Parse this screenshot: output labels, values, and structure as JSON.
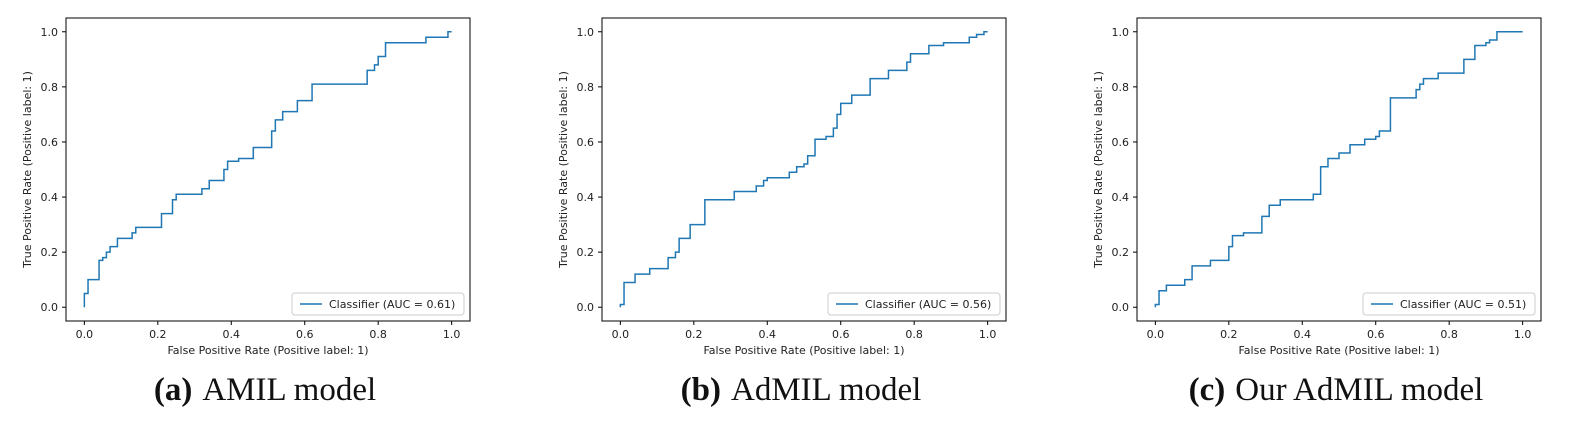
{
  "chart_data": [
    {
      "type": "line",
      "caption_tag": "(a)",
      "caption_text": "AMIL model",
      "xlabel": "False Positive Rate (Positive label: 1)",
      "ylabel": "True Positive Rate (Positive label: 1)",
      "xlim": [
        -0.05,
        1.05
      ],
      "ylim": [
        -0.05,
        1.05
      ],
      "xticks": [
        "0.0",
        "0.2",
        "0.4",
        "0.6",
        "0.8",
        "1.0"
      ],
      "yticks": [
        "0.0",
        "0.2",
        "0.4",
        "0.6",
        "0.8",
        "1.0"
      ],
      "legend_position": "lower-right",
      "series": [
        {
          "name": "Classifier (AUC = 0.61)",
          "color": "#1f77b4",
          "x": [
            0.0,
            0.0,
            0.01,
            0.01,
            0.04,
            0.04,
            0.05,
            0.05,
            0.06,
            0.06,
            0.07,
            0.07,
            0.09,
            0.09,
            0.13,
            0.13,
            0.14,
            0.14,
            0.21,
            0.21,
            0.24,
            0.24,
            0.25,
            0.25,
            0.32,
            0.32,
            0.34,
            0.34,
            0.38,
            0.38,
            0.39,
            0.39,
            0.42,
            0.42,
            0.46,
            0.46,
            0.51,
            0.51,
            0.52,
            0.52,
            0.54,
            0.54,
            0.58,
            0.58,
            0.62,
            0.62,
            0.77,
            0.77,
            0.79,
            0.79,
            0.8,
            0.8,
            0.82,
            0.82,
            0.93,
            0.93,
            0.99,
            0.99,
            1.0
          ],
          "y": [
            0.0,
            0.05,
            0.05,
            0.1,
            0.1,
            0.17,
            0.17,
            0.18,
            0.18,
            0.2,
            0.2,
            0.22,
            0.22,
            0.25,
            0.25,
            0.27,
            0.27,
            0.29,
            0.29,
            0.34,
            0.34,
            0.39,
            0.39,
            0.41,
            0.41,
            0.43,
            0.43,
            0.46,
            0.46,
            0.5,
            0.5,
            0.53,
            0.53,
            0.54,
            0.54,
            0.58,
            0.58,
            0.64,
            0.64,
            0.68,
            0.68,
            0.71,
            0.71,
            0.75,
            0.75,
            0.81,
            0.81,
            0.86,
            0.86,
            0.88,
            0.88,
            0.91,
            0.91,
            0.96,
            0.96,
            0.98,
            0.98,
            1.0,
            1.0
          ]
        }
      ]
    },
    {
      "type": "line",
      "caption_tag": "(b)",
      "caption_text": "AdMIL model",
      "xlabel": "False Positive Rate (Positive label: 1)",
      "ylabel": "True Positive Rate (Positive label: 1)",
      "xlim": [
        -0.05,
        1.05
      ],
      "ylim": [
        -0.05,
        1.05
      ],
      "xticks": [
        "0.0",
        "0.2",
        "0.4",
        "0.6",
        "0.8",
        "1.0"
      ],
      "yticks": [
        "0.0",
        "0.2",
        "0.4",
        "0.6",
        "0.8",
        "1.0"
      ],
      "legend_position": "lower-right",
      "series": [
        {
          "name": "Classifier (AUC = 0.56)",
          "color": "#1f77b4",
          "x": [
            0.0,
            0.0,
            0.01,
            0.01,
            0.04,
            0.04,
            0.08,
            0.08,
            0.13,
            0.13,
            0.15,
            0.15,
            0.16,
            0.16,
            0.19,
            0.19,
            0.23,
            0.23,
            0.31,
            0.31,
            0.37,
            0.37,
            0.39,
            0.39,
            0.4,
            0.4,
            0.46,
            0.46,
            0.48,
            0.48,
            0.5,
            0.5,
            0.51,
            0.51,
            0.53,
            0.53,
            0.56,
            0.56,
            0.58,
            0.58,
            0.59,
            0.59,
            0.6,
            0.6,
            0.63,
            0.63,
            0.68,
            0.68,
            0.73,
            0.73,
            0.78,
            0.78,
            0.79,
            0.79,
            0.84,
            0.84,
            0.88,
            0.88,
            0.95,
            0.95,
            0.97,
            0.97,
            0.99,
            0.99,
            1.0
          ],
          "y": [
            0.0,
            0.01,
            0.01,
            0.09,
            0.09,
            0.12,
            0.12,
            0.14,
            0.14,
            0.18,
            0.18,
            0.2,
            0.2,
            0.25,
            0.25,
            0.3,
            0.3,
            0.39,
            0.39,
            0.42,
            0.42,
            0.44,
            0.44,
            0.46,
            0.46,
            0.47,
            0.47,
            0.49,
            0.49,
            0.51,
            0.51,
            0.52,
            0.52,
            0.55,
            0.55,
            0.61,
            0.61,
            0.62,
            0.62,
            0.65,
            0.65,
            0.7,
            0.7,
            0.74,
            0.74,
            0.77,
            0.77,
            0.83,
            0.83,
            0.86,
            0.86,
            0.89,
            0.89,
            0.92,
            0.92,
            0.95,
            0.95,
            0.96,
            0.96,
            0.98,
            0.98,
            0.99,
            0.99,
            1.0,
            1.0
          ]
        }
      ]
    },
    {
      "type": "line",
      "caption_tag": "(c)",
      "caption_text": "Our AdMIL model",
      "xlabel": "False Positive Rate (Positive label: 1)",
      "ylabel": "True Positive Rate (Positive label: 1)",
      "xlim": [
        -0.05,
        1.05
      ],
      "ylim": [
        -0.05,
        1.05
      ],
      "xticks": [
        "0.0",
        "0.2",
        "0.4",
        "0.6",
        "0.8",
        "1.0"
      ],
      "yticks": [
        "0.0",
        "0.2",
        "0.4",
        "0.6",
        "0.8",
        "1.0"
      ],
      "legend_position": "lower-right",
      "series": [
        {
          "name": "Classifier (AUC = 0.51)",
          "color": "#1f77b4",
          "x": [
            0.0,
            0.0,
            0.01,
            0.01,
            0.03,
            0.03,
            0.08,
            0.08,
            0.1,
            0.1,
            0.15,
            0.15,
            0.2,
            0.2,
            0.21,
            0.21,
            0.24,
            0.24,
            0.29,
            0.29,
            0.31,
            0.31,
            0.34,
            0.34,
            0.43,
            0.43,
            0.45,
            0.45,
            0.47,
            0.47,
            0.5,
            0.5,
            0.53,
            0.53,
            0.57,
            0.57,
            0.6,
            0.6,
            0.61,
            0.61,
            0.64,
            0.64,
            0.71,
            0.71,
            0.72,
            0.72,
            0.73,
            0.73,
            0.77,
            0.77,
            0.84,
            0.84,
            0.87,
            0.87,
            0.9,
            0.9,
            0.91,
            0.91,
            0.93,
            0.93,
            0.96,
            0.96,
            1.0
          ],
          "y": [
            0.0,
            0.01,
            0.01,
            0.06,
            0.06,
            0.08,
            0.08,
            0.1,
            0.1,
            0.15,
            0.15,
            0.17,
            0.17,
            0.22,
            0.22,
            0.26,
            0.26,
            0.27,
            0.27,
            0.33,
            0.33,
            0.37,
            0.37,
            0.39,
            0.39,
            0.41,
            0.41,
            0.51,
            0.51,
            0.54,
            0.54,
            0.56,
            0.56,
            0.59,
            0.59,
            0.61,
            0.61,
            0.62,
            0.62,
            0.64,
            0.64,
            0.76,
            0.76,
            0.79,
            0.79,
            0.81,
            0.81,
            0.83,
            0.83,
            0.85,
            0.85,
            0.9,
            0.9,
            0.95,
            0.95,
            0.96,
            0.96,
            0.97,
            0.97,
            1.0,
            1.0,
            1.0,
            1.0
          ]
        }
      ]
    }
  ]
}
